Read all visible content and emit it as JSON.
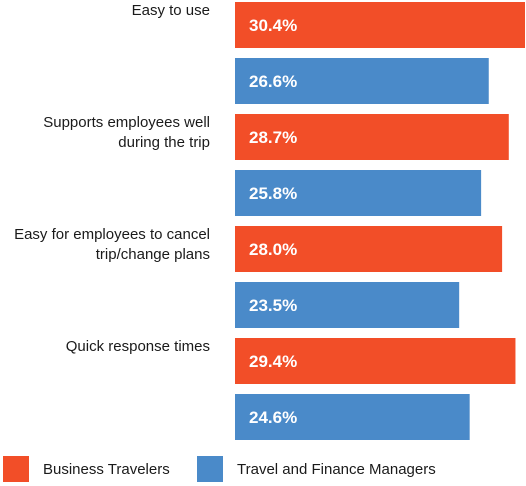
{
  "chart_data": {
    "type": "bar",
    "orientation": "horizontal",
    "categories": [
      "Easy to use",
      "Supports employees well during the trip",
      "Easy for employees to cancel trip/change plans",
      "Quick response times"
    ],
    "category_lines": [
      [
        "Easy to use"
      ],
      [
        "Supports employees well",
        "during the trip"
      ],
      [
        "Easy for employees to cancel",
        "trip/change plans"
      ],
      [
        "Quick response times"
      ]
    ],
    "series": [
      {
        "name": "Business Travelers",
        "color": "#f24e28",
        "values": [
          30.4,
          28.7,
          28.0,
          29.4
        ]
      },
      {
        "name": "Travel and Finance Managers",
        "color": "#4a8ac9",
        "values": [
          26.6,
          25.8,
          23.5,
          24.6
        ]
      }
    ],
    "value_suffix": "%",
    "value_format": "0.0",
    "grid": false,
    "legend_position": "bottom-left"
  }
}
